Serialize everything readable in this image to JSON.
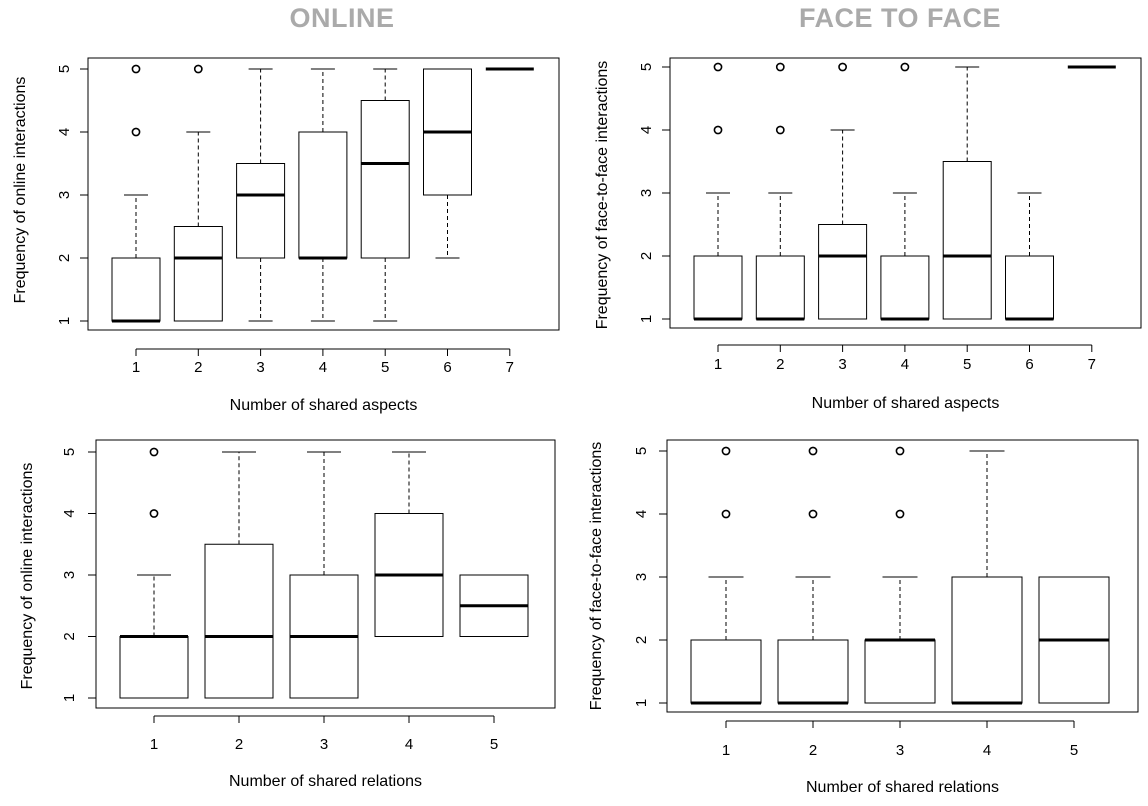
{
  "headings": {
    "online": "ONLINE",
    "face_to_face": "FACE TO FACE"
  },
  "colors": {
    "heading": "#aaaaaa",
    "axis": "#000000",
    "box_fill": "#ffffff"
  },
  "chart_data": [
    {
      "type": "box",
      "panel": "online-shared-aspects",
      "xlabel": "Number of shared aspects",
      "ylabel": "Frequency of online interactions",
      "categories": [
        "1",
        "2",
        "3",
        "4",
        "5",
        "6",
        "7"
      ],
      "ylim": [
        1,
        5
      ],
      "yticks": [
        1,
        2,
        3,
        4,
        5
      ],
      "boxes": [
        {
          "min": 1,
          "q1": 1,
          "median": 1,
          "q3": 2,
          "max": 3,
          "outliers": [
            4,
            5
          ]
        },
        {
          "min": 1,
          "q1": 1,
          "median": 2,
          "q3": 2.5,
          "max": 4,
          "outliers": [
            5
          ]
        },
        {
          "min": 1,
          "q1": 2,
          "median": 3,
          "q3": 3.5,
          "max": 5,
          "outliers": []
        },
        {
          "min": 1,
          "q1": 2,
          "median": 2,
          "q3": 4,
          "max": 5,
          "outliers": []
        },
        {
          "min": 1,
          "q1": 2,
          "median": 3.5,
          "q3": 4.5,
          "max": 5,
          "outliers": []
        },
        {
          "min": 2,
          "q1": 3,
          "median": 4,
          "q3": 5,
          "max": 5,
          "outliers": []
        },
        {
          "min": 5,
          "q1": 5,
          "median": 5,
          "q3": 5,
          "max": 5,
          "outliers": []
        }
      ]
    },
    {
      "type": "box",
      "panel": "face-shared-aspects",
      "xlabel": "Number of shared aspects",
      "ylabel": "Frequency of face-to-face interactions",
      "categories": [
        "1",
        "2",
        "3",
        "4",
        "5",
        "6",
        "7"
      ],
      "ylim": [
        1,
        5
      ],
      "yticks": [
        1,
        2,
        3,
        4,
        5
      ],
      "boxes": [
        {
          "min": 1,
          "q1": 1,
          "median": 1,
          "q3": 2,
          "max": 3,
          "outliers": [
            4,
            5
          ]
        },
        {
          "min": 1,
          "q1": 1,
          "median": 1,
          "q3": 2,
          "max": 3,
          "outliers": [
            4,
            5
          ]
        },
        {
          "min": 1,
          "q1": 1,
          "median": 2,
          "q3": 2.5,
          "max": 4,
          "outliers": [
            5
          ]
        },
        {
          "min": 1,
          "q1": 1,
          "median": 1,
          "q3": 2,
          "max": 3,
          "outliers": [
            5
          ]
        },
        {
          "min": 1,
          "q1": 1,
          "median": 2,
          "q3": 3.5,
          "max": 5,
          "outliers": []
        },
        {
          "min": 1,
          "q1": 1,
          "median": 1,
          "q3": 2,
          "max": 3,
          "outliers": []
        },
        {
          "min": 5,
          "q1": 5,
          "median": 5,
          "q3": 5,
          "max": 5,
          "outliers": []
        }
      ]
    },
    {
      "type": "box",
      "panel": "online-shared-relations",
      "xlabel": "Number of shared relations",
      "ylabel": "Frequency of online interactions",
      "categories": [
        "1",
        "2",
        "3",
        "4",
        "5"
      ],
      "ylim": [
        1,
        5
      ],
      "yticks": [
        1,
        2,
        3,
        4,
        5
      ],
      "boxes": [
        {
          "min": 1,
          "q1": 1,
          "median": 2,
          "q3": 2,
          "max": 3,
          "outliers": [
            4,
            5
          ]
        },
        {
          "min": 1,
          "q1": 1,
          "median": 2,
          "q3": 3.5,
          "max": 5,
          "outliers": []
        },
        {
          "min": 1,
          "q1": 1,
          "median": 2,
          "q3": 3,
          "max": 5,
          "outliers": []
        },
        {
          "min": 2,
          "q1": 2,
          "median": 3,
          "q3": 4,
          "max": 5,
          "outliers": []
        },
        {
          "min": 2,
          "q1": 2,
          "median": 2.5,
          "q3": 3,
          "max": 3,
          "outliers": []
        }
      ]
    },
    {
      "type": "box",
      "panel": "face-shared-relations",
      "xlabel": "Number of shared relations",
      "ylabel": "Frequency of face-to-face interactions",
      "categories": [
        "1",
        "2",
        "3",
        "4",
        "5"
      ],
      "ylim": [
        1,
        5
      ],
      "yticks": [
        1,
        2,
        3,
        4,
        5
      ],
      "boxes": [
        {
          "min": 1,
          "q1": 1,
          "median": 1,
          "q3": 2,
          "max": 3,
          "outliers": [
            4,
            5
          ]
        },
        {
          "min": 1,
          "q1": 1,
          "median": 1,
          "q3": 2,
          "max": 3,
          "outliers": [
            4,
            5
          ]
        },
        {
          "min": 1,
          "q1": 1,
          "median": 2,
          "q3": 2,
          "max": 3,
          "outliers": [
            4,
            5
          ]
        },
        {
          "min": 1,
          "q1": 1,
          "median": 1,
          "q3": 3,
          "max": 5,
          "outliers": []
        },
        {
          "min": 1,
          "q1": 1,
          "median": 2,
          "q3": 3,
          "max": 3,
          "outliers": []
        }
      ]
    }
  ]
}
